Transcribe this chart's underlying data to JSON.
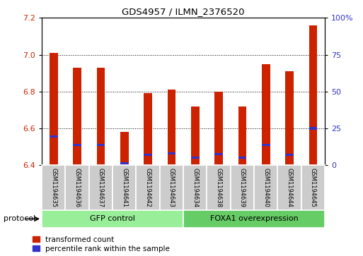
{
  "title": "GDS4957 / ILMN_2376520",
  "samples": [
    "GSM1194635",
    "GSM1194636",
    "GSM1194637",
    "GSM1194641",
    "GSM1194642",
    "GSM1194643",
    "GSM1194634",
    "GSM1194638",
    "GSM1194639",
    "GSM1194640",
    "GSM1194644",
    "GSM1194645"
  ],
  "transformed_count": [
    7.01,
    6.93,
    6.93,
    6.58,
    6.79,
    6.81,
    6.72,
    6.8,
    6.72,
    6.95,
    6.91,
    7.16
  ],
  "percentile_values": [
    6.555,
    6.51,
    6.51,
    6.41,
    6.455,
    6.465,
    6.44,
    6.46,
    6.44,
    6.51,
    6.455,
    6.6
  ],
  "ylim": [
    6.4,
    7.2
  ],
  "y_ticks": [
    6.4,
    6.6,
    6.8,
    7.0,
    7.2
  ],
  "right_y_ticks": [
    0,
    25,
    50,
    75,
    100
  ],
  "bar_color": "#cc2200",
  "percentile_color": "#3333cc",
  "gfp_group_color": "#99ee99",
  "foxa1_group_color": "#66cc66",
  "sample_bg_color": "#cccccc",
  "protocol_label": "protocol",
  "legend_items": [
    "transformed count",
    "percentile rank within the sample"
  ],
  "base_value": 6.4,
  "bar_width": 0.35
}
